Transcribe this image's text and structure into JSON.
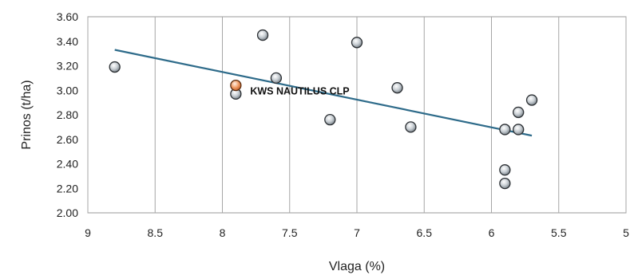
{
  "chart_data": {
    "type": "scatter",
    "title": "",
    "xlabel": "Vlaga (%)",
    "ylabel": "Prinos (t/ha)",
    "x_reversed": true,
    "xlim": [
      5,
      9
    ],
    "ylim": [
      2.0,
      3.6
    ],
    "x_ticks": [
      "9",
      "8.5",
      "8",
      "7.5",
      "7",
      "6.5",
      "6",
      "5.5",
      "5"
    ],
    "y_ticks": [
      "3.60",
      "3.40",
      "3.20",
      "3.00",
      "2.80",
      "2.60",
      "2.40",
      "2.20",
      "2.00"
    ],
    "grid": "vertical",
    "series": [
      {
        "points": [
          {
            "x": 8.8,
            "y": 3.19
          },
          {
            "x": 7.9,
            "y": 2.97
          },
          {
            "x": 7.7,
            "y": 3.45
          },
          {
            "x": 7.6,
            "y": 3.1
          },
          {
            "x": 7.2,
            "y": 2.76
          },
          {
            "x": 7.0,
            "y": 3.39
          },
          {
            "x": 6.7,
            "y": 3.02
          },
          {
            "x": 6.6,
            "y": 2.7
          },
          {
            "x": 5.9,
            "y": 2.68
          },
          {
            "x": 5.9,
            "y": 2.35
          },
          {
            "x": 5.9,
            "y": 2.24
          },
          {
            "x": 5.8,
            "y": 2.82
          },
          {
            "x": 5.8,
            "y": 2.68
          },
          {
            "x": 5.7,
            "y": 2.92
          }
        ],
        "color": "#c9cfd4"
      },
      {
        "name": "KWS NAUTILUS CLP",
        "points": [
          {
            "x": 7.9,
            "y": 3.04
          }
        ],
        "color": "#f2a06b"
      }
    ],
    "trendline": {
      "from": {
        "x": 8.8,
        "y": 3.33
      },
      "to": {
        "x": 5.7,
        "y": 2.63
      },
      "color": "#2e6b8a"
    },
    "annotations": [
      {
        "text": "KWS NAUTILUS CLP",
        "x": 7.9,
        "y": 3.0
      }
    ]
  }
}
